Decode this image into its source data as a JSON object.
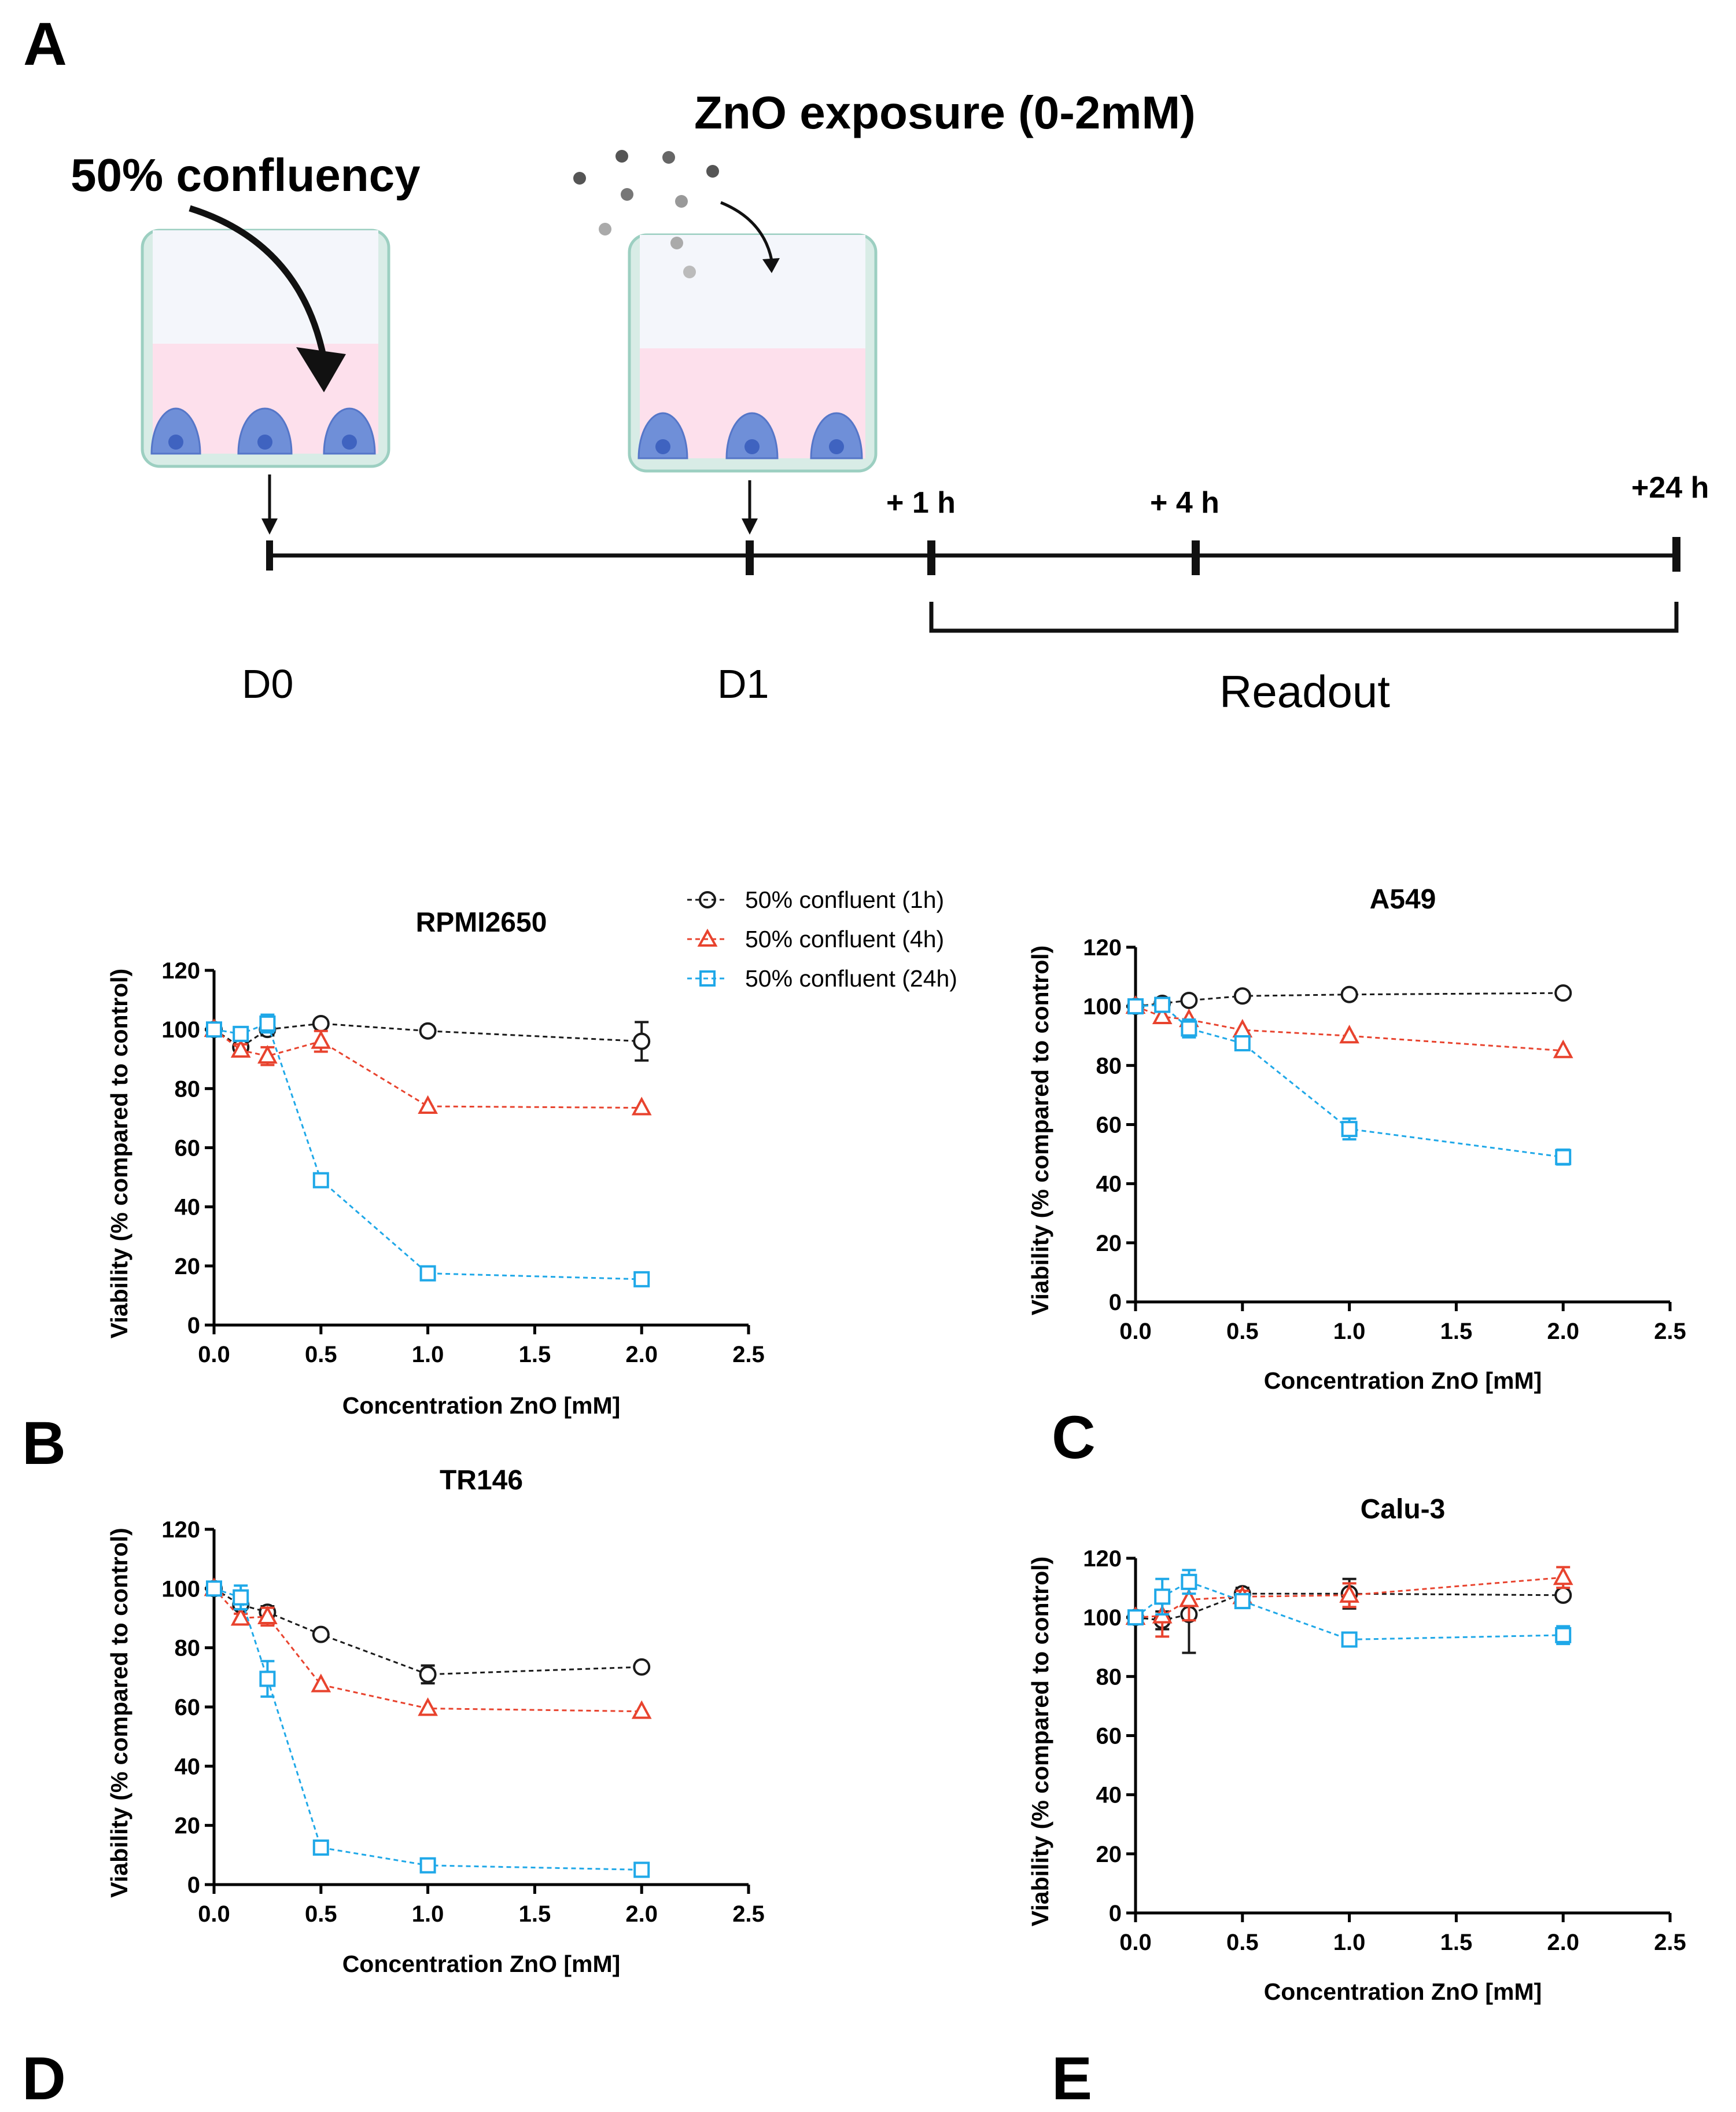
{
  "panels": {
    "a": "A",
    "b": "B",
    "c": "C",
    "d": "D",
    "e": "E"
  },
  "schematic": {
    "step0_label": "50% confluency",
    "step1_label": "ZnO exposure (0-2mM)",
    "t1": "+ 1 h",
    "t4": "+ 4 h",
    "t24": "+24 h",
    "d0": "D0",
    "d1": "D1",
    "readout": "Readout"
  },
  "legend": {
    "items": [
      "50% confluent (1h)",
      "50% confluent (4h)",
      "50% confluent (24h)"
    ]
  },
  "colors": {
    "s1h": "#1a1a1a",
    "s4h": "#e8432e",
    "s24h": "#1fa8e8",
    "well_fill": "#d8ece6",
    "well_border": "#9ccfc1",
    "medium": "#fde0ec",
    "air": "#f4f6fb",
    "cell": "#6f8fd8",
    "nucleus": "#3f63c0"
  },
  "chart_data": [
    {
      "type": "line",
      "title": "RPMI2650",
      "xlabel": "Concentration ZnO [mM]",
      "ylabel": "Viability (% compared to control)",
      "xlim": [
        0,
        2.5
      ],
      "ylim": [
        0,
        120
      ],
      "xticks": [
        "0.0",
        "0.5",
        "1.0",
        "1.5",
        "2.0",
        "2.5"
      ],
      "yticks": [
        "0",
        "20",
        "40",
        "60",
        "80",
        "100",
        "120"
      ],
      "x": [
        0,
        0.125,
        0.25,
        0.5,
        1.0,
        2.0
      ],
      "series": [
        {
          "name": "50% confluent (1h)",
          "values": [
            100,
            94,
            100,
            102,
            99.5,
            96
          ],
          "err": [
            1,
            2,
            2,
            1,
            1.5,
            6.5
          ]
        },
        {
          "name": "50% confluent (4h)",
          "values": [
            100,
            93,
            91,
            96,
            74,
            73.5
          ],
          "err": [
            1,
            2,
            3,
            3.5,
            1,
            1
          ]
        },
        {
          "name": "50% confluent (24h)",
          "values": [
            100,
            98.5,
            102,
            49,
            17.5,
            15.5
          ],
          "err": [
            1,
            2,
            3,
            2,
            1.5,
            1
          ]
        }
      ]
    },
    {
      "type": "line",
      "title": "A549",
      "xlabel": "Concentration ZnO [mM]",
      "ylabel": "Viability (% compared to control)",
      "xlim": [
        0,
        2.5
      ],
      "ylim": [
        0,
        120
      ],
      "xticks": [
        "0.0",
        "0.5",
        "1.0",
        "1.5",
        "2.0",
        "2.5"
      ],
      "yticks": [
        "0",
        "20",
        "40",
        "60",
        "80",
        "100",
        "120"
      ],
      "x": [
        0,
        0.125,
        0.25,
        0.5,
        1.0,
        2.0
      ],
      "series": [
        {
          "name": "50% confluent (1h)",
          "values": [
            100,
            101,
            102,
            103.5,
            104,
            104.5
          ],
          "err": [
            1,
            1,
            1,
            1,
            1,
            1
          ]
        },
        {
          "name": "50% confluent (4h)",
          "values": [
            100,
            96.5,
            95.5,
            92,
            90,
            85
          ],
          "err": [
            1,
            1,
            1,
            1,
            1,
            1
          ]
        },
        {
          "name": "50% confluent (24h)",
          "values": [
            100,
            100.5,
            92.5,
            87.5,
            58.5,
            49
          ],
          "err": [
            1,
            1.5,
            3,
            1.5,
            3.5,
            2.5
          ]
        }
      ]
    },
    {
      "type": "line",
      "title": "TR146",
      "xlabel": "Concentration ZnO [mM]",
      "ylabel": "Viability (% compared to control)",
      "xlim": [
        0,
        2.5
      ],
      "ylim": [
        0,
        120
      ],
      "xticks": [
        "0.0",
        "0.5",
        "1.0",
        "1.5",
        "2.0",
        "2.5"
      ],
      "yticks": [
        "0",
        "20",
        "40",
        "60",
        "80",
        "100",
        "120"
      ],
      "x": [
        0,
        0.125,
        0.25,
        0.5,
        1.0,
        2.0
      ],
      "series": [
        {
          "name": "50% confluent (1h)",
          "values": [
            100,
            94.5,
            92,
            84.5,
            71,
            73.5
          ],
          "err": [
            1,
            1.5,
            2,
            1,
            3,
            1
          ]
        },
        {
          "name": "50% confluent (4h)",
          "values": [
            100,
            90,
            90.5,
            67.5,
            59.5,
            58.5
          ],
          "err": [
            1,
            1.5,
            3,
            1,
            1,
            1
          ]
        },
        {
          "name": "50% confluent (24h)",
          "values": [
            100,
            97,
            69.5,
            12.5,
            6.5,
            5
          ],
          "err": [
            1,
            4,
            6,
            1,
            1,
            1
          ]
        }
      ]
    },
    {
      "type": "line",
      "title": "Calu-3",
      "xlabel": "Concentration ZnO [mM]",
      "ylabel": "Viability (% compared to control)",
      "xlim": [
        0,
        2.5
      ],
      "ylim": [
        0,
        120
      ],
      "xticks": [
        "0.0",
        "0.5",
        "1.0",
        "1.5",
        "2.0",
        "2.5"
      ],
      "yticks": [
        "0",
        "20",
        "40",
        "60",
        "80",
        "100",
        "120"
      ],
      "x": [
        0,
        0.125,
        0.25,
        0.5,
        1.0,
        2.0
      ],
      "series": [
        {
          "name": "50% confluent (1h)",
          "values": [
            100,
            99,
            101,
            108,
            108,
            107.5
          ],
          "err": [
            1,
            3,
            13,
            2,
            5,
            1.5
          ]
        },
        {
          "name": "50% confluent (4h)",
          "values": [
            100,
            100.5,
            106,
            107,
            107.5,
            113.5
          ],
          "err": [
            1,
            7,
            7,
            2,
            4,
            3.5
          ]
        },
        {
          "name": "50% confluent (24h)",
          "values": [
            100,
            107,
            112,
            105.5,
            92.5,
            94
          ],
          "err": [
            1,
            6,
            4,
            2,
            2,
            3
          ]
        }
      ]
    }
  ]
}
